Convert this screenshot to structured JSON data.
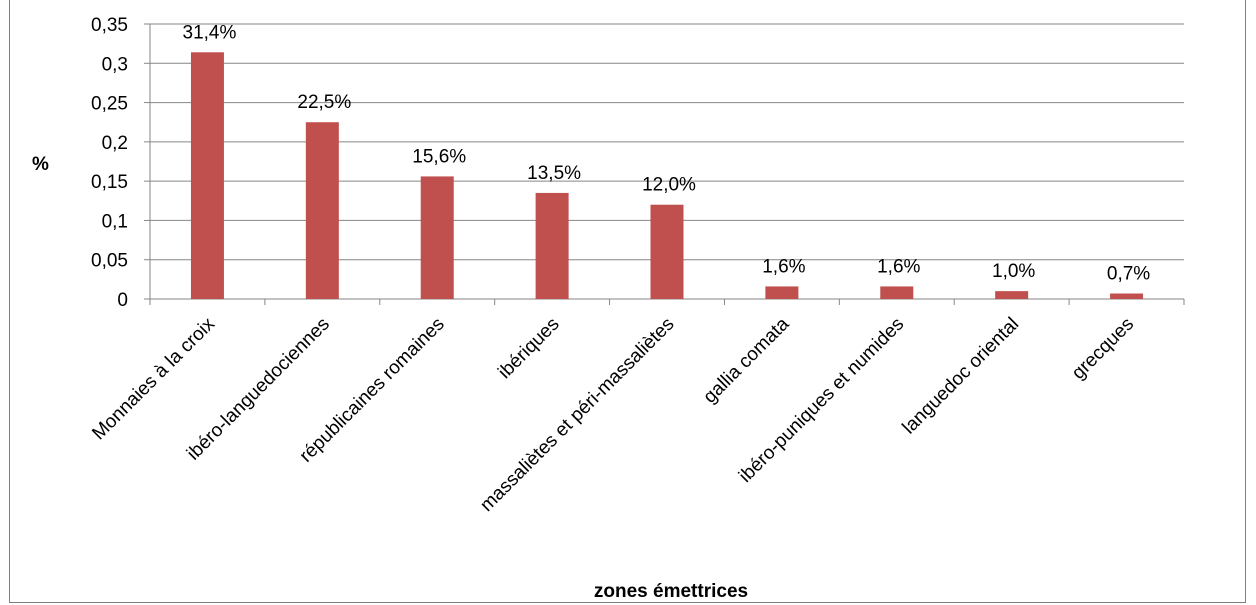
{
  "chart_data": {
    "type": "bar",
    "title": "",
    "xlabel": "zones émettrices",
    "ylabel": "%",
    "ylim": [
      0,
      0.35
    ],
    "yticks": [
      "0",
      "0,05",
      "0,1",
      "0,15",
      "0,2",
      "0,25",
      "0,3",
      "0,35"
    ],
    "categories": [
      "Monnaies à la croix",
      "ibéro-languedociennes",
      "républicaines romaines",
      "ibériques",
      "massaliètes et péri-massaliètes",
      "gallia comata",
      "ibéro-puniques et numides",
      "languedoc oriental",
      "grecques"
    ],
    "values": [
      0.314,
      0.225,
      0.156,
      0.135,
      0.12,
      0.016,
      0.016,
      0.01,
      0.007
    ],
    "data_labels": [
      "31,4%",
      "22,5%",
      "15,6%",
      "13,5%",
      "12,0%",
      "1,6%",
      "1,6%",
      "1,0%",
      "0,7%"
    ],
    "grid": true,
    "legend": "none",
    "bar_color": "#c0504d",
    "gridline_color": "#868686"
  }
}
